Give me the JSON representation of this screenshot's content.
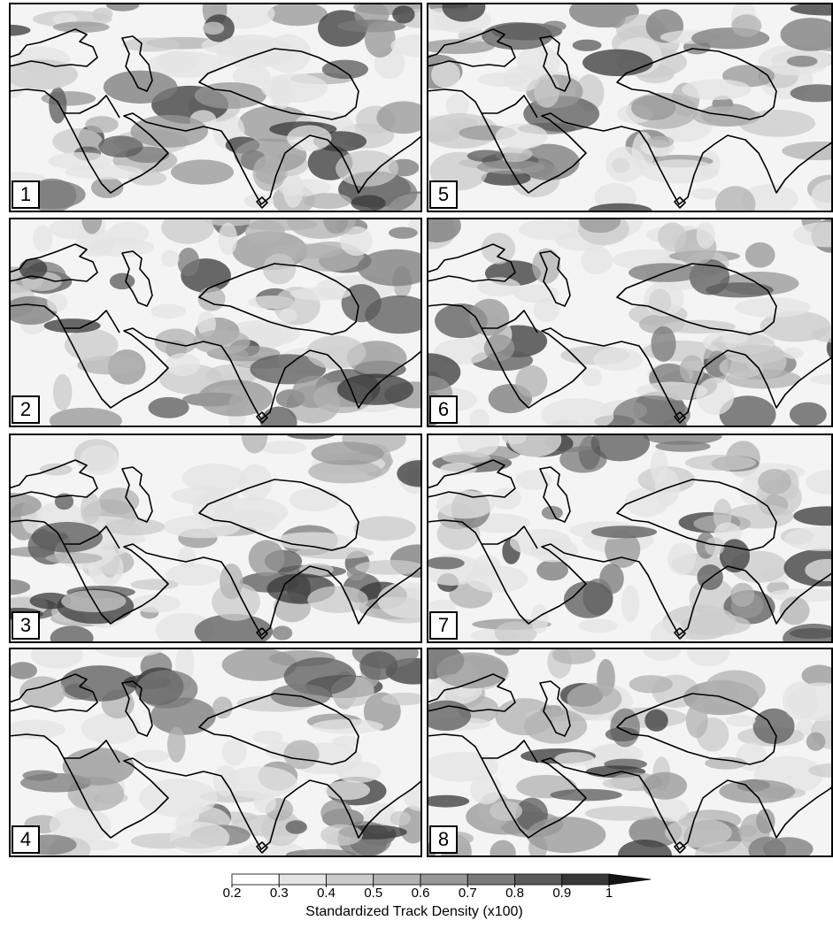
{
  "panels": [
    {
      "label": "1"
    },
    {
      "label": "2"
    },
    {
      "label": "3"
    },
    {
      "label": "4"
    },
    {
      "label": "5"
    },
    {
      "label": "6"
    },
    {
      "label": "7"
    },
    {
      "label": "8"
    }
  ],
  "colorbar": {
    "label": "Standardized Track Density (x100)",
    "ticks": [
      0.2,
      0.3,
      0.4,
      0.5,
      0.6,
      0.7,
      0.8,
      0.9,
      1
    ],
    "colors": [
      "#ffffff",
      "#e4e4e4",
      "#cbcbcb",
      "#b2b2b2",
      "#979797",
      "#7a7a7a",
      "#5a5a5a",
      "#383838",
      "#141414"
    ]
  }
}
